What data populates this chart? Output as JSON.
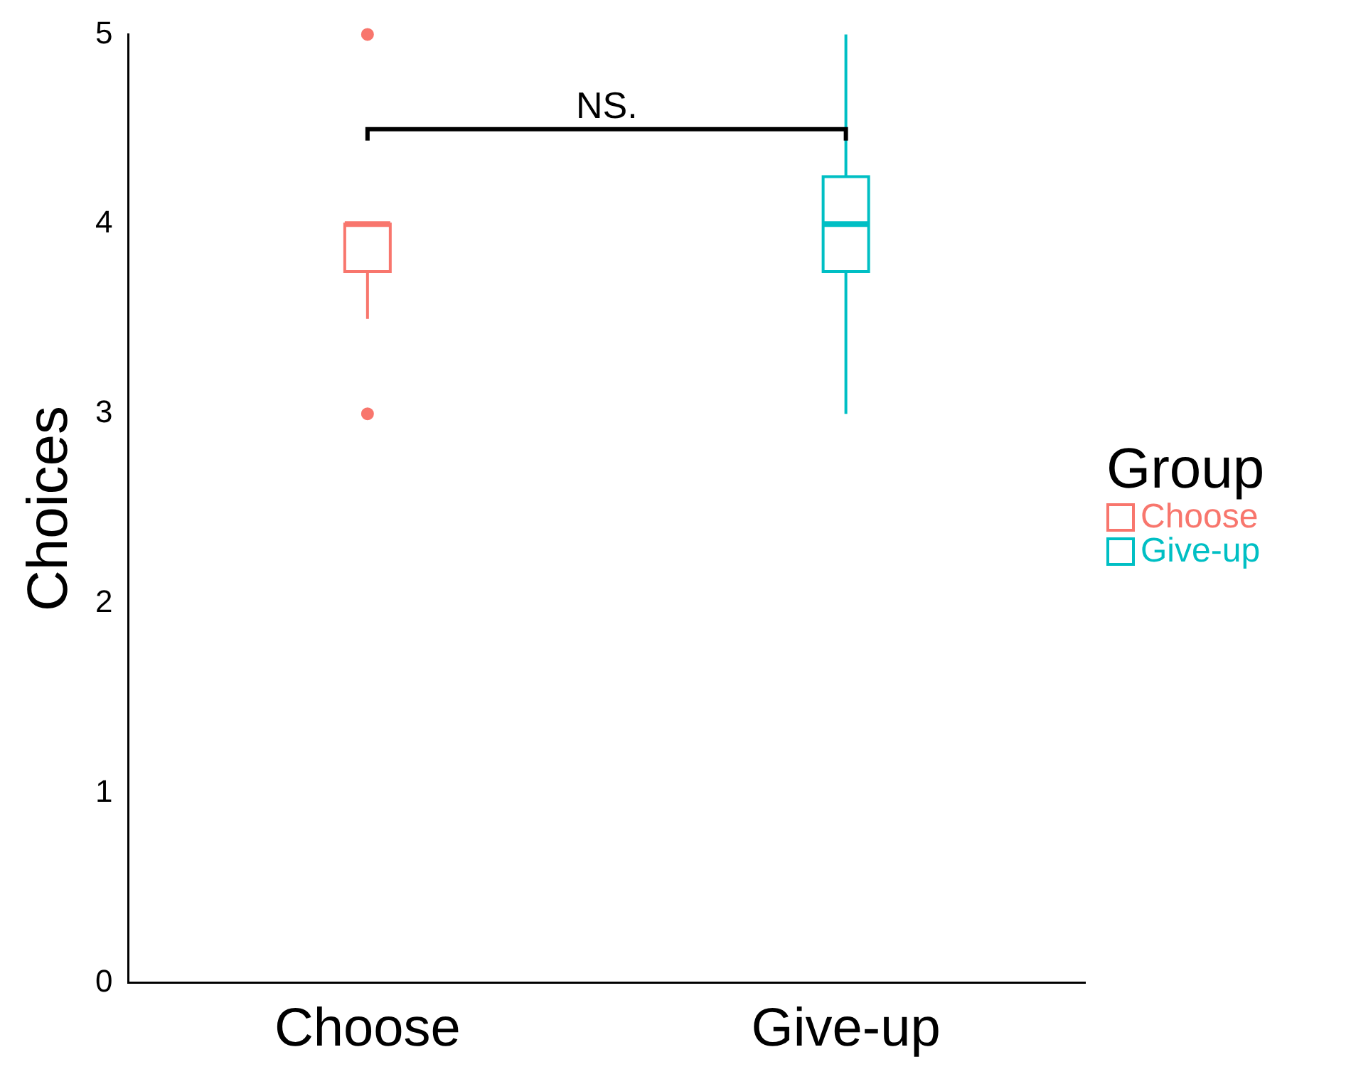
{
  "chart_data": {
    "type": "box",
    "ylabel": "Choices",
    "legend_title": "Group",
    "legend": "right",
    "grid": false,
    "categories": [
      "Choose",
      "Give-up"
    ],
    "series": [
      {
        "name": "Choose",
        "color": "#f8766d",
        "boxes": [
          {
            "low": 3.5,
            "q1": 3.75,
            "median": 4,
            "q3": 4,
            "high": 4,
            "outliers": [
              3,
              5
            ]
          },
          null
        ]
      },
      {
        "name": "Give-up",
        "color": "#00bfc4",
        "boxes": [
          null,
          {
            "low": 3,
            "q1": 3.75,
            "median": 4,
            "q3": 4.25,
            "high": 5
          }
        ]
      }
    ],
    "ylim": [
      0,
      5
    ],
    "yticks": [
      0,
      1,
      2,
      3,
      4,
      5
    ],
    "annotations": [
      "NS."
    ]
  }
}
